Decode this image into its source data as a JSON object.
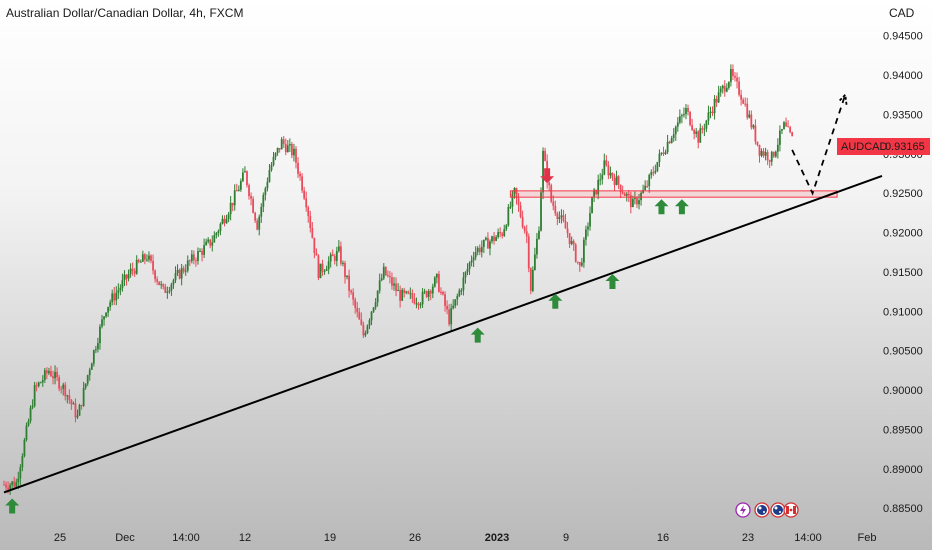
{
  "header": {
    "title": "Australian Dollar/Canadian Dollar, 4h, FXCM",
    "currency": "CAD"
  },
  "price_tag": {
    "symbol": "AUDCAD",
    "price": "0.93165",
    "color": "#f23645"
  },
  "colors": {
    "up": "#2e7d32",
    "down": "#e94b5b",
    "trendline": "#000000",
    "zone": "#f23645"
  },
  "chart_data": {
    "type": "candlestick",
    "timeframe": "4h",
    "ylim": [
      0.8835,
      0.947
    ],
    "y_ticks": [
      0.885,
      0.89,
      0.895,
      0.9,
      0.905,
      0.91,
      0.915,
      0.92,
      0.925,
      0.93,
      0.935,
      0.94,
      0.945
    ],
    "y_tick_labels": [
      "0.88500",
      "0.89000",
      "0.89500",
      "0.90000",
      "0.90500",
      "0.91000",
      "0.91500",
      "0.92000",
      "0.92500",
      "0.93000",
      "0.93500",
      "0.94000",
      "0.94500"
    ],
    "x_tick_labels": [
      "25",
      "Dec",
      "14:00",
      "12",
      "19",
      "26",
      "2023",
      "9",
      "16",
      "23",
      "14:00",
      "Feb"
    ],
    "anchors": [
      {
        "t": 0,
        "p": 0.888
      },
      {
        "t": 6,
        "p": 0.8882
      },
      {
        "t": 12,
        "p": 0.896
      },
      {
        "t": 15,
        "p": 0.9
      },
      {
        "t": 22,
        "p": 0.9025
      },
      {
        "t": 30,
        "p": 0.9
      },
      {
        "t": 36,
        "p": 0.8965
      },
      {
        "t": 42,
        "p": 0.903
      },
      {
        "t": 50,
        "p": 0.9105
      },
      {
        "t": 62,
        "p": 0.915
      },
      {
        "t": 70,
        "p": 0.917
      },
      {
        "t": 78,
        "p": 0.9125
      },
      {
        "t": 90,
        "p": 0.916
      },
      {
        "t": 102,
        "p": 0.919
      },
      {
        "t": 112,
        "p": 0.924
      },
      {
        "t": 118,
        "p": 0.9275
      },
      {
        "t": 124,
        "p": 0.921
      },
      {
        "t": 130,
        "p": 0.928
      },
      {
        "t": 136,
        "p": 0.9315
      },
      {
        "t": 142,
        "p": 0.93
      },
      {
        "t": 148,
        "p": 0.924
      },
      {
        "t": 154,
        "p": 0.915
      },
      {
        "t": 164,
        "p": 0.9175
      },
      {
        "t": 170,
        "p": 0.912
      },
      {
        "t": 176,
        "p": 0.907
      },
      {
        "t": 186,
        "p": 0.915
      },
      {
        "t": 194,
        "p": 0.912
      },
      {
        "t": 204,
        "p": 0.9115
      },
      {
        "t": 212,
        "p": 0.914
      },
      {
        "t": 218,
        "p": 0.909
      },
      {
        "t": 230,
        "p": 0.9175
      },
      {
        "t": 244,
        "p": 0.92
      },
      {
        "t": 250,
        "p": 0.925
      },
      {
        "t": 256,
        "p": 0.9195
      },
      {
        "t": 258,
        "p": 0.913
      },
      {
        "t": 262,
        "p": 0.921
      },
      {
        "t": 264,
        "p": 0.93
      },
      {
        "t": 268,
        "p": 0.924
      },
      {
        "t": 276,
        "p": 0.92
      },
      {
        "t": 282,
        "p": 0.9155
      },
      {
        "t": 288,
        "p": 0.924
      },
      {
        "t": 294,
        "p": 0.9285
      },
      {
        "t": 300,
        "p": 0.9265
      },
      {
        "t": 308,
        "p": 0.9235
      },
      {
        "t": 314,
        "p": 0.9255
      },
      {
        "t": 320,
        "p": 0.929
      },
      {
        "t": 328,
        "p": 0.933
      },
      {
        "t": 334,
        "p": 0.9355
      },
      {
        "t": 340,
        "p": 0.932
      },
      {
        "t": 348,
        "p": 0.9365
      },
      {
        "t": 356,
        "p": 0.94
      },
      {
        "t": 362,
        "p": 0.937
      },
      {
        "t": 370,
        "p": 0.9305
      },
      {
        "t": 376,
        "p": 0.9295
      },
      {
        "t": 382,
        "p": 0.9335
      },
      {
        "t": 386,
        "p": 0.9318
      }
    ],
    "annotations": {
      "trendline": {
        "from": {
          "t": 0,
          "p": 0.887
        },
        "to": {
          "t": 430,
          "p": 0.9272
        }
      },
      "resistance_zone": {
        "t_start": 248,
        "t_end": 408,
        "p_low": 0.9245,
        "p_high": 0.9253
      },
      "projection": [
        {
          "t": 386,
          "p": 0.9305
        },
        {
          "t": 396,
          "p": 0.925
        },
        {
          "t": 412,
          "p": 0.9375
        }
      ],
      "buy_arrows": [
        {
          "t": 4,
          "p": 0.887
        },
        {
          "t": 232,
          "p": 0.9087
        },
        {
          "t": 270,
          "p": 0.913
        },
        {
          "t": 298,
          "p": 0.9155
        },
        {
          "t": 322,
          "p": 0.925
        },
        {
          "t": 332,
          "p": 0.925
        }
      ],
      "sell_arrows": [
        {
          "t": 266,
          "p": 0.9255
        }
      ]
    }
  },
  "footer_icons": [
    "lightning-icon",
    "au-flag-icon",
    "au-flag-icon",
    "ca-flag-icon"
  ]
}
